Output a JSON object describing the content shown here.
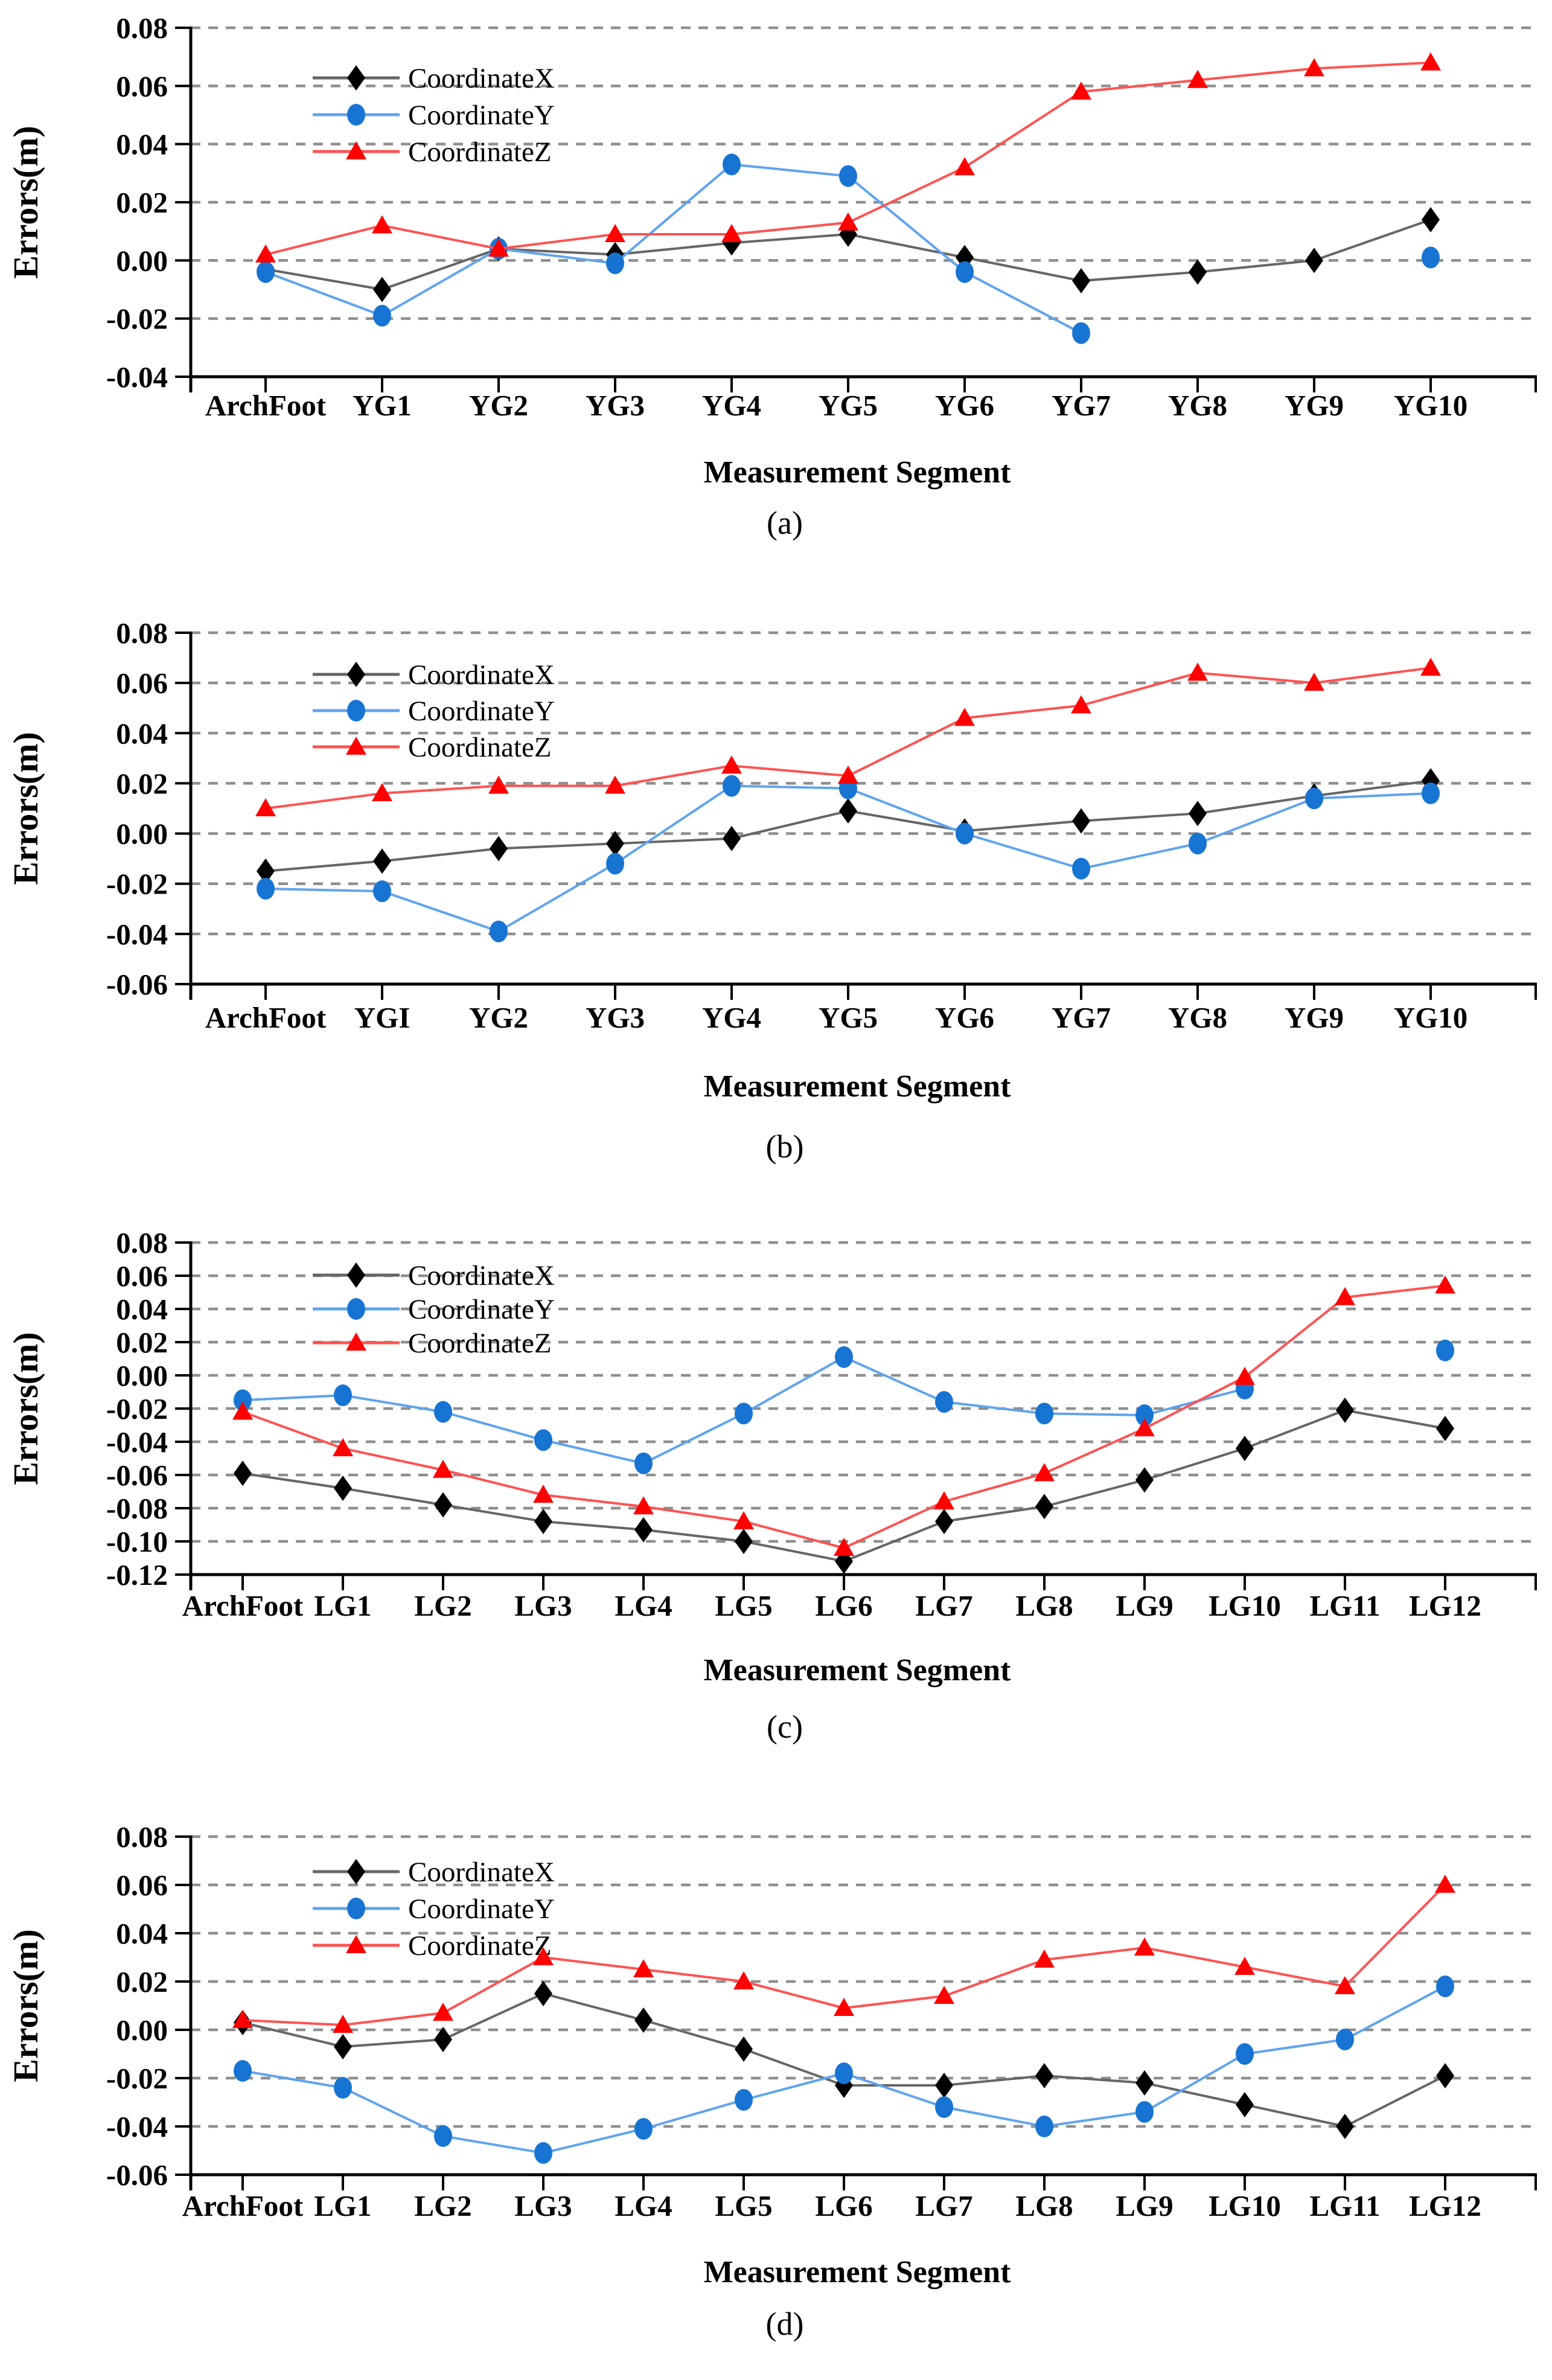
{
  "figure": {
    "ylabel": "Errors(m)",
    "xlabel": "Measurement Segment",
    "legend": [
      "CoordinateX",
      "CoordinateY",
      "CoordinateZ"
    ],
    "colors": {
      "x_marker": "#000000",
      "x_line": "#666666",
      "y_marker": "#1874d2",
      "y_line": "#5fa4ee",
      "z_marker": "#ff0000",
      "z_line": "#ff5252",
      "grid": "#8f8f8f",
      "axis": "#000000",
      "text": "#000000",
      "background": "#ffffff"
    }
  },
  "chart_data": [
    {
      "type": "line",
      "id": "a",
      "caption": "(a)",
      "xlabel": "Measurement Segment",
      "ylabel": "Errors(m)",
      "ylim": [
        -0.04,
        0.08
      ],
      "ytick_step": 0.02,
      "grid": true,
      "legend_position": "top-left",
      "categories": [
        "ArchFoot",
        "YG1",
        "YG2",
        "YG3",
        "YG4",
        "YG5",
        "YG6",
        "YG7",
        "YG8",
        "YG9",
        "YG10"
      ],
      "series": [
        {
          "name": "CoordinateX",
          "marker": "diamond",
          "values": [
            -0.003,
            -0.01,
            0.004,
            0.002,
            0.006,
            0.009,
            0.001,
            -0.007,
            -0.004,
            0.0,
            0.014
          ]
        },
        {
          "name": "CoordinateY",
          "marker": "circle",
          "values": [
            -0.004,
            -0.019,
            0.004,
            -0.001,
            0.033,
            0.029,
            -0.004,
            -0.025,
            null,
            null,
            0.001
          ]
        },
        {
          "name": "CoordinateZ",
          "marker": "triangle",
          "values": [
            0.002,
            0.012,
            0.004,
            0.009,
            0.009,
            0.013,
            0.032,
            0.058,
            0.062,
            0.066,
            0.068
          ]
        }
      ]
    },
    {
      "type": "line",
      "id": "b",
      "caption": "(b)",
      "xlabel": "Measurement Segment",
      "ylabel": "Errors(m)",
      "ylim": [
        -0.06,
        0.08
      ],
      "ytick_step": 0.02,
      "grid": true,
      "legend_position": "top-left",
      "categories": [
        "ArchFoot",
        "YGI",
        "YG2",
        "YG3",
        "YG4",
        "YG5",
        "YG6",
        "YG7",
        "YG8",
        "YG9",
        "YG10"
      ],
      "series": [
        {
          "name": "CoordinateX",
          "marker": "diamond",
          "values": [
            -0.015,
            -0.011,
            -0.006,
            -0.004,
            -0.002,
            0.009,
            0.001,
            0.005,
            0.008,
            0.015,
            0.021
          ]
        },
        {
          "name": "CoordinateY",
          "marker": "circle",
          "values": [
            -0.022,
            -0.023,
            -0.039,
            -0.012,
            0.019,
            0.018,
            0.0,
            -0.014,
            -0.004,
            0.014,
            0.016
          ]
        },
        {
          "name": "CoordinateZ",
          "marker": "triangle",
          "values": [
            0.01,
            0.016,
            0.019,
            0.019,
            0.027,
            0.023,
            0.046,
            0.051,
            0.064,
            0.06,
            0.066
          ]
        }
      ]
    },
    {
      "type": "line",
      "id": "c",
      "caption": "(c)",
      "xlabel": "Measurement Segment",
      "ylabel": "Errors(m)",
      "ylim": [
        -0.12,
        0.08
      ],
      "ytick_step": 0.02,
      "grid": true,
      "legend_position": "top-left",
      "categories": [
        "ArchFoot",
        "LG1",
        "LG2",
        "LG3",
        "LG4",
        "LG5",
        "LG6",
        "LG7",
        "LG8",
        "LG9",
        "LG10",
        "LG11",
        "LG12"
      ],
      "series": [
        {
          "name": "CoordinateX",
          "marker": "diamond",
          "values": [
            -0.059,
            -0.068,
            -0.078,
            -0.088,
            -0.093,
            -0.1,
            -0.112,
            -0.088,
            -0.079,
            -0.063,
            -0.044,
            -0.021,
            -0.032
          ]
        },
        {
          "name": "CoordinateY",
          "marker": "circle",
          "values": [
            -0.015,
            -0.012,
            -0.022,
            -0.039,
            -0.053,
            -0.023,
            0.011,
            -0.016,
            -0.023,
            -0.024,
            -0.008,
            null,
            0.015
          ]
        },
        {
          "name": "CoordinateZ",
          "marker": "triangle",
          "values": [
            -0.022,
            -0.044,
            -0.057,
            -0.072,
            -0.079,
            -0.088,
            -0.104,
            -0.076,
            -0.059,
            -0.032,
            -0.001,
            0.047,
            0.054
          ]
        }
      ]
    },
    {
      "type": "line",
      "id": "d",
      "caption": "(d)",
      "xlabel": "Measurement Segment",
      "ylabel": "Errors(m)",
      "ylim": [
        -0.06,
        0.08
      ],
      "ytick_step": 0.02,
      "grid": true,
      "legend_position": "top-left",
      "categories": [
        "ArchFoot",
        "LG1",
        "LG2",
        "LG3",
        "LG4",
        "LG5",
        "LG6",
        "LG7",
        "LG8",
        "LG9",
        "LG10",
        "LG11",
        "LG12"
      ],
      "series": [
        {
          "name": "CoordinateX",
          "marker": "diamond",
          "values": [
            0.003,
            -0.007,
            -0.004,
            0.015,
            0.004,
            -0.008,
            -0.023,
            -0.023,
            -0.019,
            -0.022,
            -0.031,
            -0.04,
            -0.019
          ]
        },
        {
          "name": "CoordinateY",
          "marker": "circle",
          "values": [
            -0.017,
            -0.024,
            -0.044,
            -0.051,
            -0.041,
            -0.029,
            -0.018,
            -0.032,
            -0.04,
            -0.034,
            -0.01,
            -0.004,
            0.018
          ]
        },
        {
          "name": "CoordinateZ",
          "marker": "triangle",
          "values": [
            0.004,
            0.002,
            0.007,
            0.03,
            0.025,
            0.02,
            0.009,
            0.014,
            0.029,
            0.034,
            0.026,
            0.018,
            0.06
          ]
        }
      ]
    }
  ]
}
